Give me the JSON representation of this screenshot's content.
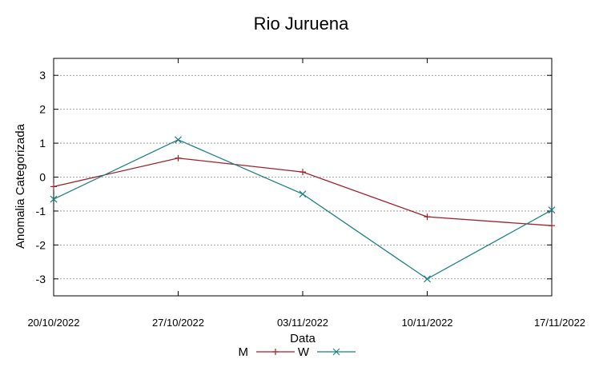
{
  "chart_data": {
    "type": "line",
    "title": "Rio Juruena",
    "xlabel": "Data",
    "ylabel": "Anomalia Categorizada",
    "x": [
      "20/10/2022",
      "27/10/2022",
      "03/11/2022",
      "10/11/2022",
      "17/11/2022"
    ],
    "ylim": [
      -3.5,
      3.5
    ],
    "yticks": [
      3,
      2,
      1,
      0,
      -1,
      -2,
      -3
    ],
    "grid": true,
    "legend_position": "bottom",
    "series": [
      {
        "name": "M",
        "color": "#a0202a",
        "marker": "plus",
        "values": [
          -0.28,
          0.56,
          0.15,
          -1.17,
          -1.43
        ]
      },
      {
        "name": "W",
        "color": "#1e8080",
        "marker": "cross",
        "values": [
          -0.65,
          1.1,
          -0.5,
          -3.0,
          -0.97
        ]
      }
    ]
  }
}
